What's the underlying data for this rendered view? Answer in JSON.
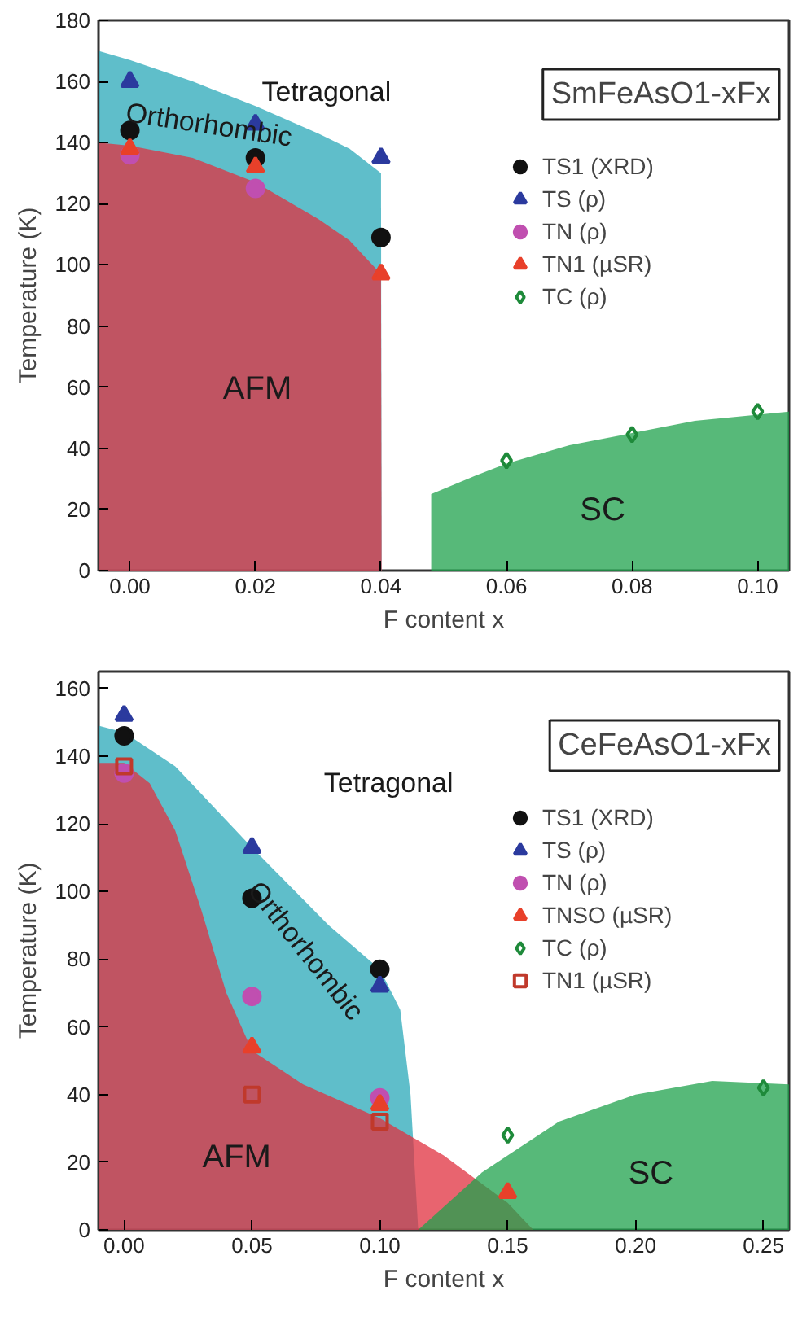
{
  "chart_data": [
    {
      "type": "scatter",
      "title": "SmFeAsO1-xFx",
      "xlabel": "F content x",
      "ylabel": "Temperature (K)",
      "xlim": [
        -0.005,
        0.105
      ],
      "ylim": [
        0,
        180
      ],
      "xticks": [
        {
          "value": 0,
          "label": "0.00"
        },
        {
          "value": 0.02,
          "label": "0.02"
        },
        {
          "value": 0.04,
          "label": "0.04"
        },
        {
          "value": 0.06,
          "label": "0.06"
        },
        {
          "value": 0.08,
          "label": "0.08"
        },
        {
          "value": 0.1,
          "label": "0.10"
        }
      ],
      "yticks": [
        0,
        20,
        40,
        60,
        80,
        100,
        120,
        140,
        160,
        180
      ],
      "grid": false,
      "legend": "top right",
      "series": [
        {
          "type": "area",
          "color": "#2aa8b8",
          "x": [
            -0.005,
            0,
            0.01,
            0.02,
            0.03,
            0.035,
            0.04,
            0.0401
          ],
          "values": [
            170,
            167,
            160,
            152,
            143,
            138,
            130,
            0
          ]
        },
        {
          "type": "area",
          "color": "#e0303f",
          "x": [
            -0.005,
            0,
            0.01,
            0.02,
            0.03,
            0.035,
            0.04,
            0.0401
          ],
          "values": [
            140,
            139,
            135,
            127,
            115,
            108,
            97,
            0
          ]
        },
        {
          "type": "area",
          "color": "#1fa14c",
          "x": [
            0.048,
            0.055,
            0.06,
            0.07,
            0.08,
            0.09,
            0.1,
            0.105
          ],
          "values": [
            25,
            31,
            35,
            41,
            45,
            49,
            51,
            52
          ]
        },
        {
          "name": "TS1 (XRD)",
          "marker": "circle",
          "color": "#111111",
          "x": [
            0,
            0.02,
            0.04
          ],
          "values": [
            144,
            135,
            109
          ]
        },
        {
          "name": "TS (ρ)",
          "marker": "triangle",
          "color": "#2b3a9e",
          "x": [
            0,
            0.02,
            0.04
          ],
          "values": [
            160,
            146,
            135
          ]
        },
        {
          "name": "TN (ρ)",
          "marker": "circle",
          "color": "#c04fb0",
          "x": [
            0,
            0.02
          ],
          "values": [
            136,
            125
          ]
        },
        {
          "name": "TN1 (µSR)",
          "marker": "triangle",
          "color": "#e8402a",
          "x": [
            0,
            0.02,
            0.04
          ],
          "values": [
            138,
            132,
            97
          ]
        },
        {
          "name": "TC (ρ)",
          "marker": "diamond",
          "color": "#1e8a3a",
          "x": [
            0.06,
            0.08,
            0.1
          ],
          "values": [
            36,
            44.5,
            52
          ]
        }
      ],
      "annotations": [
        "Tetragonal",
        "Orthorhombic",
        "AFM",
        "SC"
      ]
    },
    {
      "type": "scatter",
      "title": "CeFeAsO1-xFx",
      "xlabel": "F content x",
      "ylabel": "Temperature (K)",
      "xlim": [
        -0.01,
        0.26
      ],
      "ylim": [
        0,
        165
      ],
      "xticks": [
        {
          "value": 0,
          "label": "0.00"
        },
        {
          "value": 0.05,
          "label": "0.05"
        },
        {
          "value": 0.1,
          "label": "0.10"
        },
        {
          "value": 0.15,
          "label": "0.15"
        },
        {
          "value": 0.2,
          "label": "0.20"
        },
        {
          "value": 0.25,
          "label": "0.25"
        }
      ],
      "yticks": [
        0,
        20,
        40,
        60,
        80,
        100,
        120,
        140,
        160
      ],
      "grid": false,
      "legend": "top right",
      "series": [
        {
          "type": "area",
          "color": "#2aa8b8",
          "x": [
            -0.01,
            0,
            0.02,
            0.05,
            0.08,
            0.1,
            0.108,
            0.112,
            0.115
          ],
          "values": [
            149,
            147,
            137,
            113,
            90,
            77,
            65,
            40,
            0
          ]
        },
        {
          "type": "area",
          "color": "#e0303f",
          "x": [
            -0.01,
            0,
            0.01,
            0.02,
            0.03,
            0.04,
            0.05,
            0.07,
            0.1,
            0.125,
            0.15,
            0.16
          ],
          "values": [
            138,
            138,
            132,
            118,
            95,
            70,
            53,
            43,
            33,
            22,
            8,
            0
          ]
        },
        {
          "type": "area",
          "color": "#1fa14c",
          "x": [
            0.115,
            0.14,
            0.17,
            0.2,
            0.23,
            0.26
          ],
          "values": [
            0,
            17,
            32,
            40,
            44,
            43
          ]
        },
        {
          "name": "TS1 (XRD)",
          "marker": "circle",
          "color": "#111111",
          "x": [
            0,
            0.05,
            0.1
          ],
          "values": [
            146,
            98,
            77
          ]
        },
        {
          "name": "TS (ρ)",
          "marker": "triangle",
          "color": "#2b3a9e",
          "x": [
            0,
            0.05,
            0.1
          ],
          "values": [
            152,
            113,
            72
          ]
        },
        {
          "name": "TN (ρ)",
          "marker": "circle",
          "color": "#c04fb0",
          "x": [
            0,
            0.05,
            0.1
          ],
          "values": [
            135,
            69,
            39
          ]
        },
        {
          "name": "TNSO (µSR)",
          "marker": "triangle",
          "color": "#e8402a",
          "x": [
            0.05,
            0.1,
            0.15
          ],
          "values": [
            54,
            37,
            11
          ]
        },
        {
          "name": "TC (ρ)",
          "marker": "diamond",
          "color": "#1e8a3a",
          "x": [
            0.15,
            0.25
          ],
          "values": [
            28,
            42
          ]
        },
        {
          "name": "TN1 (µSR)",
          "marker": "square",
          "color": "#c0392b",
          "x": [
            0,
            0.05,
            0.1
          ],
          "values": [
            137,
            40,
            32
          ]
        }
      ],
      "annotations": [
        "Tetragonal",
        "Orthorhombic",
        "AFM",
        "SC"
      ]
    }
  ]
}
